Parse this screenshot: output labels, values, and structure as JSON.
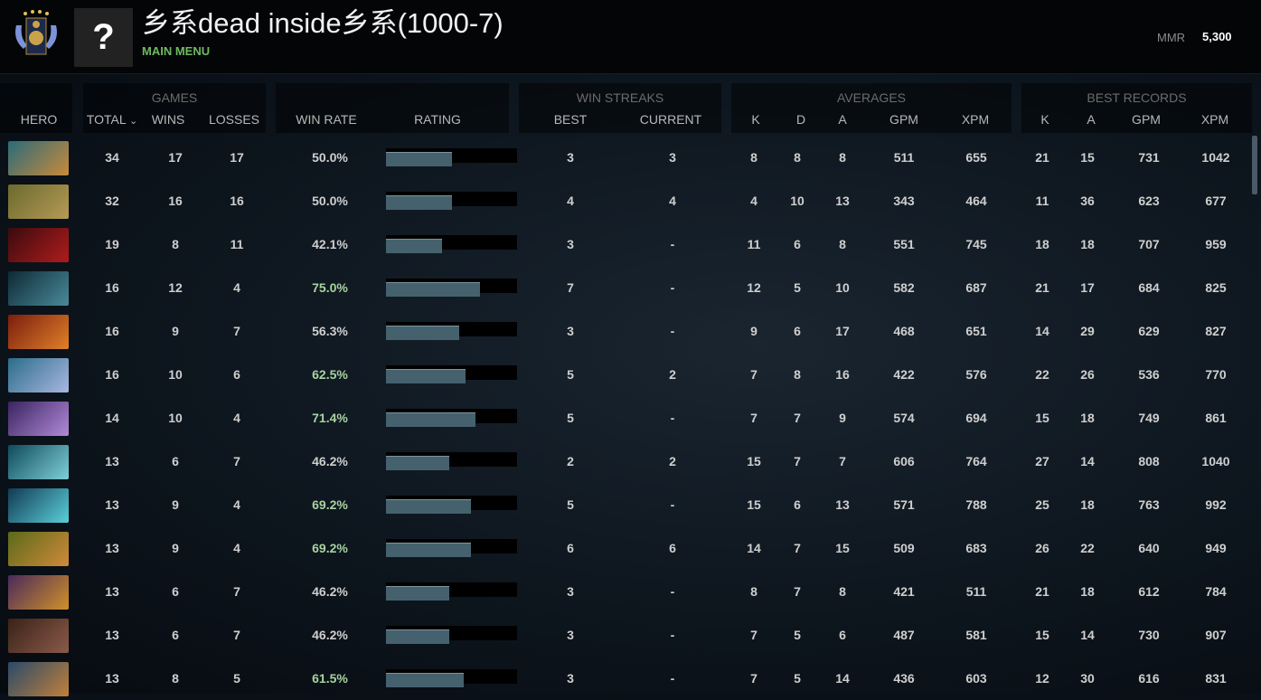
{
  "header": {
    "title": "乡系dead inside乡系(1000-7)",
    "main_menu": "MAIN MENU",
    "mmr_label": "MMR",
    "mmr_value": "5,300",
    "avatar_glyph": "?"
  },
  "columns": {
    "groups": {
      "games": "GAMES",
      "win_streaks": "WIN STREAKS",
      "averages": "AVERAGES",
      "best_records": "BEST RECORDS"
    },
    "hero": "HERO",
    "total": "TOTAL",
    "sort_icon": "⌄",
    "wins": "WINS",
    "losses": "LOSSES",
    "win_rate": "WIN RATE",
    "rating": "RATING",
    "best": "BEST",
    "current": "CURRENT",
    "k": "K",
    "d": "D",
    "a": "A",
    "gpm": "GPM",
    "xpm": "XPM",
    "best_k": "K",
    "best_a": "A",
    "best_gpm": "GPM",
    "best_xpm": "XPM"
  },
  "colors": {
    "good_winrate": "#a7d3a0",
    "bar_fill": "#45616e",
    "accent_green": "#6fba5f"
  },
  "rows": [
    {
      "portrait_colors": [
        "#2a6b7a",
        "#c98a3a"
      ],
      "total": "34",
      "wins": "17",
      "losses": "17",
      "win_rate": "50.0%",
      "rating": 0.5,
      "best": "3",
      "current": "3",
      "k": "8",
      "d": "8",
      "a": "8",
      "gpm": "511",
      "xpm": "655",
      "best_k": "21",
      "best_a": "15",
      "best_gpm": "731",
      "best_xpm": "1042"
    },
    {
      "portrait_colors": [
        "#6b6a2e",
        "#b59a55"
      ],
      "total": "32",
      "wins": "16",
      "losses": "16",
      "win_rate": "50.0%",
      "rating": 0.5,
      "best": "4",
      "current": "4",
      "k": "4",
      "d": "10",
      "a": "13",
      "gpm": "343",
      "xpm": "464",
      "best_k": "11",
      "best_a": "36",
      "best_gpm": "623",
      "best_xpm": "677"
    },
    {
      "portrait_colors": [
        "#3a0b0e",
        "#b01c1c"
      ],
      "total": "19",
      "wins": "8",
      "losses": "11",
      "win_rate": "42.1%",
      "rating": 0.43,
      "best": "3",
      "current": "-",
      "k": "11",
      "d": "6",
      "a": "8",
      "gpm": "551",
      "xpm": "745",
      "best_k": "18",
      "best_a": "18",
      "best_gpm": "707",
      "best_xpm": "959"
    },
    {
      "portrait_colors": [
        "#0e2a35",
        "#4a8a99"
      ],
      "total": "16",
      "wins": "12",
      "losses": "4",
      "win_rate": "75.0%",
      "rating": 0.72,
      "best": "7",
      "current": "-",
      "k": "12",
      "d": "5",
      "a": "10",
      "gpm": "582",
      "xpm": "687",
      "best_k": "21",
      "best_a": "17",
      "best_gpm": "684",
      "best_xpm": "825"
    },
    {
      "portrait_colors": [
        "#7a1e0e",
        "#e0802a"
      ],
      "total": "16",
      "wins": "9",
      "losses": "7",
      "win_rate": "56.3%",
      "rating": 0.56,
      "best": "3",
      "current": "-",
      "k": "9",
      "d": "6",
      "a": "17",
      "gpm": "468",
      "xpm": "651",
      "best_k": "14",
      "best_a": "29",
      "best_gpm": "629",
      "best_xpm": "827"
    },
    {
      "portrait_colors": [
        "#2b6d8a",
        "#a9b6e0"
      ],
      "total": "16",
      "wins": "10",
      "losses": "6",
      "win_rate": "62.5%",
      "rating": 0.61,
      "best": "5",
      "current": "2",
      "k": "7",
      "d": "8",
      "a": "16",
      "gpm": "422",
      "xpm": "576",
      "best_k": "22",
      "best_a": "26",
      "best_gpm": "536",
      "best_xpm": "770"
    },
    {
      "portrait_colors": [
        "#3a2460",
        "#b28ad8"
      ],
      "total": "14",
      "wins": "10",
      "losses": "4",
      "win_rate": "71.4%",
      "rating": 0.68,
      "best": "5",
      "current": "-",
      "k": "7",
      "d": "7",
      "a": "9",
      "gpm": "574",
      "xpm": "694",
      "best_k": "15",
      "best_a": "18",
      "best_gpm": "749",
      "best_xpm": "861"
    },
    {
      "portrait_colors": [
        "#0f4a5a",
        "#7fd0d8"
      ],
      "total": "13",
      "wins": "6",
      "losses": "7",
      "win_rate": "46.2%",
      "rating": 0.48,
      "best": "2",
      "current": "2",
      "k": "15",
      "d": "7",
      "a": "7",
      "gpm": "606",
      "xpm": "764",
      "best_k": "27",
      "best_a": "14",
      "best_gpm": "808",
      "best_xpm": "1040"
    },
    {
      "portrait_colors": [
        "#123a55",
        "#5ad0d8"
      ],
      "total": "13",
      "wins": "9",
      "losses": "4",
      "win_rate": "69.2%",
      "rating": 0.65,
      "best": "5",
      "current": "-",
      "k": "15",
      "d": "6",
      "a": "13",
      "gpm": "571",
      "xpm": "788",
      "best_k": "25",
      "best_a": "18",
      "best_gpm": "763",
      "best_xpm": "992"
    },
    {
      "portrait_colors": [
        "#5a6a1a",
        "#d08a3a"
      ],
      "total": "13",
      "wins": "9",
      "losses": "4",
      "win_rate": "69.2%",
      "rating": 0.65,
      "best": "6",
      "current": "6",
      "k": "14",
      "d": "7",
      "a": "15",
      "gpm": "509",
      "xpm": "683",
      "best_k": "26",
      "best_a": "22",
      "best_gpm": "640",
      "best_xpm": "949"
    },
    {
      "portrait_colors": [
        "#4a2a5a",
        "#d0902a"
      ],
      "total": "13",
      "wins": "6",
      "losses": "7",
      "win_rate": "46.2%",
      "rating": 0.48,
      "best": "3",
      "current": "-",
      "k": "8",
      "d": "7",
      "a": "8",
      "gpm": "421",
      "xpm": "511",
      "best_k": "21",
      "best_a": "18",
      "best_gpm": "612",
      "best_xpm": "784"
    },
    {
      "portrait_colors": [
        "#3a2218",
        "#8a5a4a"
      ],
      "total": "13",
      "wins": "6",
      "losses": "7",
      "win_rate": "46.2%",
      "rating": 0.48,
      "best": "3",
      "current": "-",
      "k": "7",
      "d": "5",
      "a": "6",
      "gpm": "487",
      "xpm": "581",
      "best_k": "15",
      "best_a": "14",
      "best_gpm": "730",
      "best_xpm": "907"
    },
    {
      "portrait_colors": [
        "#2a4a6a",
        "#c0803a"
      ],
      "total": "13",
      "wins": "8",
      "losses": "5",
      "win_rate": "61.5%",
      "rating": 0.59,
      "best": "3",
      "current": "-",
      "k": "7",
      "d": "5",
      "a": "14",
      "gpm": "436",
      "xpm": "603",
      "best_k": "12",
      "best_a": "30",
      "best_gpm": "616",
      "best_xpm": "831"
    }
  ]
}
